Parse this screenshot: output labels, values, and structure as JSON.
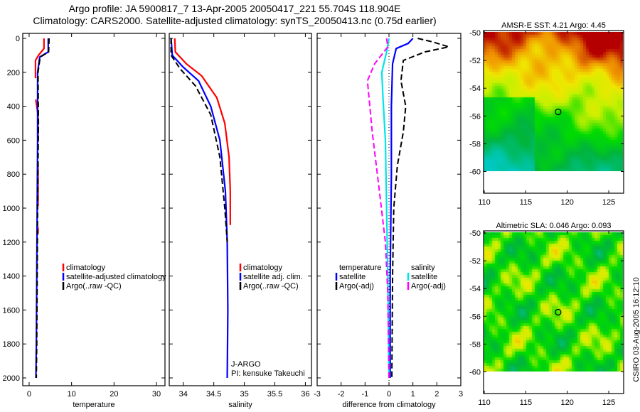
{
  "title_line1": "Argo profile: JA 5900817_7 13-Apr-2005 20050417_221 55.704S 118.904E",
  "title_line2": "Climatology: CARS2000. Satellite-adjusted climatology: synTS_20050413.nc (0.75d earlier)",
  "footer": "CSIRO 03-Aug-2005 16:12:10",
  "colors": {
    "climatology": "#ff0000",
    "satellite": "#0000ff",
    "argo": "#000000",
    "sal_satellite": "#00e5e5",
    "sal_argo": "#ff00ff"
  },
  "chart_data": [
    {
      "type": "line",
      "name": "temperature",
      "xlabel": "temperature",
      "ylabel": "",
      "xlim": [
        -1.5,
        32
      ],
      "ylim": [
        2000,
        0
      ],
      "xticks": [
        "0",
        "10",
        "20",
        "30"
      ],
      "yticks": [
        "0",
        "200",
        "400",
        "600",
        "800",
        "1000",
        "1200",
        "1400",
        "1600",
        "1800",
        "2000"
      ],
      "legend": [
        "climatology",
        "satellite-adjusted climatology",
        "Argo(..raw -QC)"
      ],
      "series": [
        {
          "name": "climatology",
          "color": "#ff0000",
          "style": "segments",
          "x": [
            3.5,
            3.5,
            2.2,
            1.5,
            1.5,
            2.1,
            2.1,
            2.1,
            2.1
          ],
          "y": [
            0,
            60,
            100,
            130,
            350,
            450,
            600,
            900,
            1150
          ]
        },
        {
          "name": "satellite-adjusted climatology",
          "color": "#0000ff",
          "style": "solid",
          "x": [
            4.5,
            4.5,
            2.5,
            2.0,
            2.0,
            1.9,
            1.8,
            1.7,
            1.6
          ],
          "y": [
            0,
            80,
            110,
            200,
            600,
            1000,
            1400,
            1800,
            2000
          ]
        },
        {
          "name": "Argo(..raw -QC)",
          "color": "#000000",
          "style": "dash",
          "x": [
            4.7,
            4.6,
            2.6,
            2.1,
            2.2,
            2.0,
            1.9,
            1.8,
            1.7
          ],
          "y": [
            0,
            80,
            110,
            200,
            500,
            1000,
            1400,
            1800,
            2000
          ]
        }
      ]
    },
    {
      "type": "line",
      "name": "salinity",
      "xlabel": "salinity",
      "xlim": [
        33.77,
        36.1
      ],
      "xticks": [
        "34",
        "34.5",
        "35",
        "35.5",
        "36"
      ],
      "legend": [
        "climatology",
        "satellite adj. clim.",
        "Argo(..raw -QC)"
      ],
      "annotation": [
        "J-ARGO",
        "PI: kensuke Takeuchi"
      ],
      "series": [
        {
          "name": "climatology",
          "color": "#ff0000",
          "style": "solid",
          "x": [
            33.86,
            33.87,
            34.05,
            34.3,
            34.55,
            34.68,
            34.75,
            34.77,
            34.77
          ],
          "y": [
            0,
            80,
            150,
            220,
            350,
            500,
            700,
            900,
            1100
          ]
        },
        {
          "name": "satellite adj. clim.",
          "color": "#0000ff",
          "style": "solid",
          "x": [
            33.8,
            33.82,
            34.0,
            34.25,
            34.45,
            34.6,
            34.69,
            34.72,
            34.73,
            34.72
          ],
          "y": [
            0,
            100,
            170,
            250,
            400,
            600,
            900,
            1200,
            1600,
            2000
          ]
        },
        {
          "name": "Argo(..raw -QC)",
          "color": "#000000",
          "style": "dash",
          "x": [
            33.8,
            33.8,
            33.95,
            34.2,
            34.45,
            34.6,
            34.68,
            34.72
          ],
          "y": [
            0,
            100,
            180,
            280,
            450,
            700,
            1000,
            1200
          ]
        }
      ]
    },
    {
      "type": "line",
      "name": "difference",
      "xlabel": "difference from climatology",
      "xlim": [
        -3,
        3
      ],
      "xticks": [
        "-3",
        "-2",
        "-1",
        "0",
        "1",
        "2",
        "3"
      ],
      "legend_left": [
        "temperature",
        "satellite",
        "Argo(-adj)"
      ],
      "legend_right": [
        "salinity",
        "satellite",
        "Argo(-adj)"
      ],
      "series": [
        {
          "name": "temperature satellite",
          "color": "#0000ff",
          "style": "solid",
          "x": [
            1.0,
            0.8,
            0.3,
            0.15,
            0.1,
            0.1,
            0.05,
            0.05
          ],
          "y": [
            0,
            30,
            60,
            150,
            400,
            800,
            1400,
            2000
          ]
        },
        {
          "name": "temperature Argo(-adj)",
          "color": "#000000",
          "style": "dash",
          "x": [
            1.2,
            1.8,
            2.5,
            1.5,
            0.6,
            0.5,
            0.7,
            0.6,
            0.35,
            0.2,
            0.15,
            0.12
          ],
          "y": [
            0,
            20,
            50,
            80,
            130,
            250,
            400,
            550,
            750,
            1000,
            1400,
            2000
          ]
        },
        {
          "name": "salinity satellite",
          "color": "#00e5e5",
          "style": "solid",
          "x": [
            0.0,
            -0.1,
            -0.3,
            -0.25,
            -0.15,
            -0.1,
            -0.05,
            0.0
          ],
          "y": [
            0,
            80,
            200,
            350,
            600,
            1000,
            1400,
            2000
          ]
        },
        {
          "name": "salinity Argo(-adj)",
          "color": "#ff00ff",
          "style": "dash",
          "x": [
            -0.1,
            -0.05,
            -0.6,
            -0.9,
            -0.8,
            -0.7,
            -0.4,
            -0.15,
            -0.05,
            0.0
          ],
          "y": [
            0,
            50,
            150,
            250,
            400,
            550,
            900,
            1200,
            1500,
            2000
          ]
        }
      ]
    },
    {
      "type": "heatmap",
      "name": "AMSR-E SST map",
      "title": "AMSR-E SST: 4.21 Argo: 4.45",
      "xlim": [
        110,
        128
      ],
      "ylim": [
        -61.7,
        -50
      ],
      "xticks": [
        "110",
        "115",
        "120",
        "125"
      ],
      "yticks": [
        "-50",
        "-52",
        "-54",
        "-56",
        "-58",
        "-60"
      ],
      "marker": {
        "lon": 118.904,
        "lat": -55.704
      }
    },
    {
      "type": "heatmap",
      "name": "Altimetric SLA map",
      "title": "Altimetric SLA: 0.046 Argo: 0.093",
      "xlim": [
        110,
        128
      ],
      "ylim": [
        -61.7,
        -50
      ],
      "xticks": [
        "110",
        "115",
        "120",
        "125"
      ],
      "yticks": [
        "-50",
        "-52",
        "-54",
        "-56",
        "-58",
        "-60"
      ],
      "marker": {
        "lon": 118.904,
        "lat": -55.704
      }
    }
  ]
}
